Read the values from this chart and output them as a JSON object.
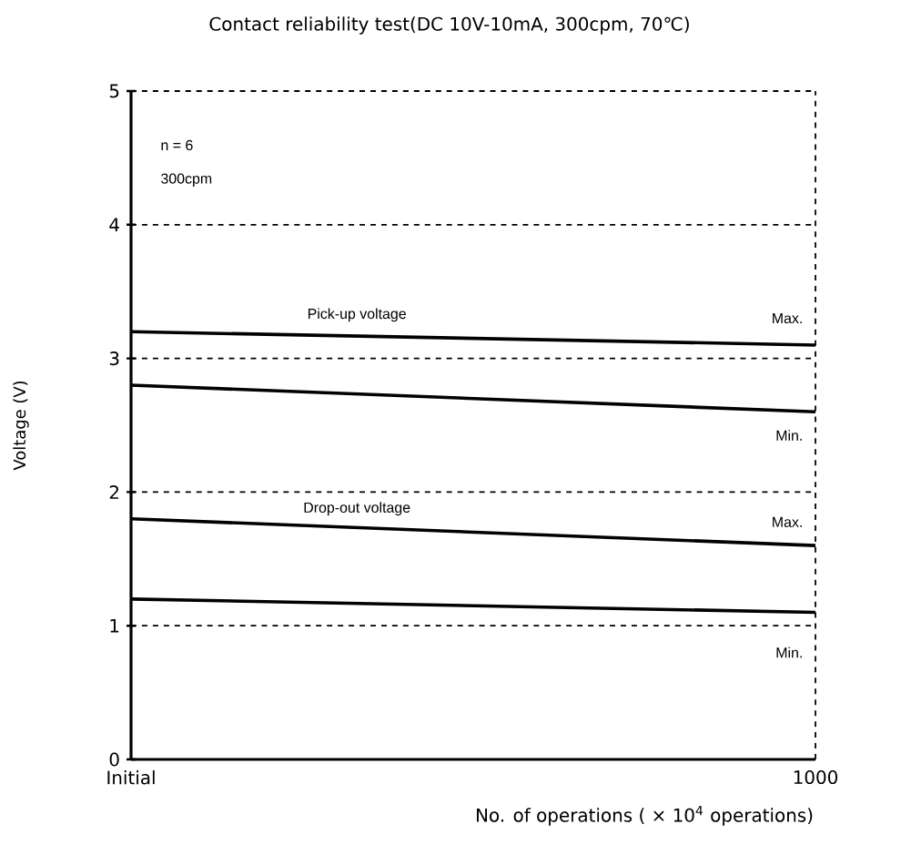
{
  "chart_data": {
    "type": "line",
    "title": "Contact reliability test(DC 10V-10mA, 300cpm, 70℃)",
    "xlabel": "No. of operations ( × 10$^{4}$ operations)",
    "ylabel": "Voltage (V)",
    "categories": [
      "Initial",
      "1000"
    ],
    "series": [
      {
        "color": "#000000",
        "values": [
          3.2,
          3.1
        ]
      },
      {
        "color": "#000000",
        "values": [
          2.8,
          2.6
        ]
      },
      {
        "color": "#000000",
        "values": [
          1.8,
          1.6
        ]
      },
      {
        "color": "#000000",
        "values": [
          1.2,
          1.1
        ]
      }
    ],
    "ylim": [
      0,
      5
    ],
    "yticks": [
      0,
      1,
      2,
      3,
      4,
      5
    ],
    "ref_lines": [
      {
        "axis": "y",
        "value": 5,
        "line_style": "dashed"
      },
      {
        "axis": "y",
        "value": 4,
        "line_style": "dashed"
      },
      {
        "axis": "y",
        "value": 3,
        "line_style": "dashed"
      },
      {
        "axis": "y",
        "value": 2,
        "line_style": "dashed"
      },
      {
        "axis": "y",
        "value": 1,
        "line_style": "dashed"
      }
    ],
    "annotations": [
      "n = 6",
      "300cpm",
      "Pick-up voltage",
      "Max.",
      "Min.",
      "Drop-out voltage",
      "Max.",
      "Min."
    ],
    "grid": "x",
    "marker": "none",
    "line_style": "solid"
  }
}
